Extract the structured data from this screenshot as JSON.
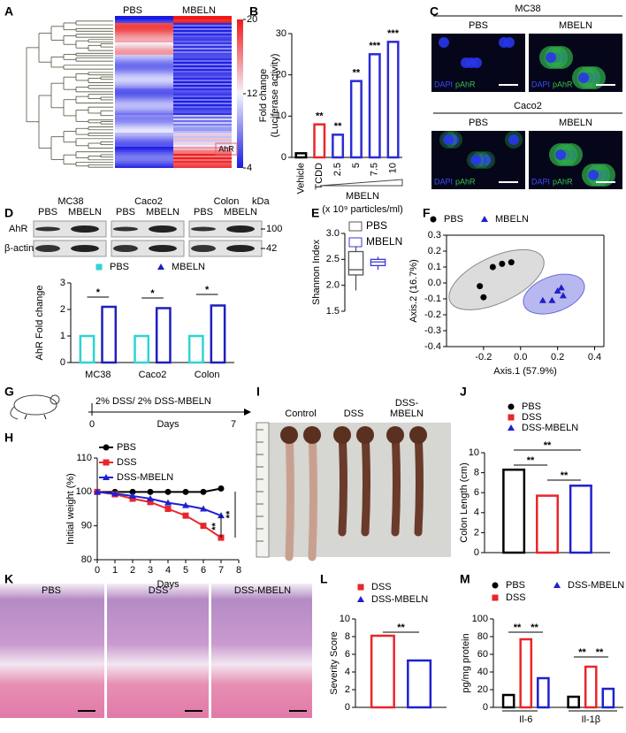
{
  "panel_labels": [
    "A",
    "B",
    "C",
    "D",
    "E",
    "F",
    "G",
    "H",
    "I",
    "J",
    "K",
    "L",
    "M"
  ],
  "heatmap": {
    "columns": [
      "PBS",
      "MBELN"
    ],
    "colorbar_lim": [
      4,
      20
    ],
    "colorbar_ticks": [
      20,
      12,
      4
    ],
    "highlight": "AhR"
  },
  "microscopy": {
    "rows": [
      {
        "cell_line": "MC38",
        "conditions": [
          "PBS",
          "MBELN"
        ]
      },
      {
        "cell_line": "Caco2",
        "conditions": [
          "PBS",
          "MBELN"
        ]
      }
    ],
    "channels": [
      "DAPI",
      "pAhR"
    ]
  },
  "western_blot": {
    "groups": [
      "MC38",
      "Caco2",
      "Colon"
    ],
    "lanes": [
      "PBS",
      "MBELN"
    ],
    "proteins": [
      "AhR",
      "β-actin"
    ],
    "unit": "kDa",
    "markers": [
      "100",
      "42"
    ]
  },
  "schematic": {
    "treatment": "2% DSS/ 2% DSS-MBELN",
    "start": "0",
    "axis_label": "Days",
    "end": "7"
  },
  "colon_photo": {
    "groups": [
      [
        "Control"
      ],
      [
        "DSS"
      ],
      [
        "DSS-",
        "MBELN"
      ]
    ]
  },
  "histology": {
    "groups": [
      "PBS",
      "DSS",
      "DSS-MBELN"
    ]
  },
  "chart_data": [
    {
      "type": "bar",
      "ylabel": [
        "Fold change",
        "(Luciferase activity)"
      ],
      "categories": [
        "Vehicle",
        "TCDD",
        "2.5",
        "5",
        "7.5",
        "10"
      ],
      "values": [
        1,
        8,
        5.5,
        18.5,
        25,
        28
      ],
      "colors": [
        "#000000",
        "#e8262a",
        "#2b2bd6",
        "#2b2bd6",
        "#2b2bd6",
        "#2b2bd6"
      ],
      "annotations": [
        null,
        "**",
        "**",
        "**",
        "***",
        "***"
      ],
      "xlabel": [
        "MBELN",
        "(x 10⁹ particles/ml)"
      ],
      "ylim": [
        0,
        30
      ],
      "yticks": [
        0,
        10,
        20,
        30
      ]
    },
    {
      "type": "bar",
      "ylabel": "AhR Fold change",
      "categories": [
        "MC38",
        "Caco2",
        "Colon"
      ],
      "series": [
        {
          "name": "PBS",
          "color": "#2fd3d3",
          "marker": "square",
          "values": [
            1,
            1,
            1
          ]
        },
        {
          "name": "MBELN",
          "color": "#1f1fbf",
          "marker": "triangle",
          "values": [
            2.1,
            2.05,
            2.15
          ]
        }
      ],
      "annotations": [
        "*",
        "*",
        "*"
      ],
      "ylim": [
        0,
        3
      ],
      "yticks": [
        0,
        1,
        2,
        3
      ]
    },
    {
      "type": "box",
      "ylabel": "Shannon Index",
      "series": [
        {
          "name": "PBS",
          "color": "#555555",
          "min": 1.9,
          "q1": 2.2,
          "median": 2.3,
          "q3": 2.65,
          "max": 2.85
        },
        {
          "name": "MBELN",
          "color": "#3a3ad8",
          "min": 2.3,
          "q1": 2.38,
          "median": 2.45,
          "q3": 2.5,
          "max": 2.55
        }
      ],
      "ylim": [
        1.5,
        3.0
      ],
      "yticks": [
        1.5,
        {
          "value": 2,
          "label": "2.0"
        },
        2.5,
        {
          "value": 3,
          "label": "3.0"
        }
      ]
    },
    {
      "type": "scatter",
      "xlabel": "Axis.1 (57.9%)",
      "ylabel": "Axis.2 (16.7%)",
      "series": [
        {
          "name": "PBS",
          "color": "#000000",
          "marker": "circle",
          "x": [
            -0.22,
            -0.2,
            -0.15,
            -0.1,
            -0.05
          ],
          "values": [
            -0.02,
            -0.09,
            0.1,
            0.12,
            0.13
          ]
        },
        {
          "name": "MBELN",
          "color": "#2020c8",
          "marker": "triangle",
          "x": [
            0.12,
            0.17,
            0.2,
            0.22,
            0.23
          ],
          "values": [
            -0.11,
            -0.11,
            -0.05,
            -0.03,
            -0.08
          ]
        }
      ],
      "xlim": [
        -0.4,
        0.45
      ],
      "xticks": [
        -0.2,
        {
          "value": 0,
          "label": "0.0"
        },
        0.2,
        0.4
      ],
      "ylim": [
        -0.4,
        0.3
      ],
      "yticks": [
        -0.4,
        -0.3,
        -0.2,
        -0.1,
        {
          "value": 0,
          "label": "0.0"
        },
        0.1,
        0.2,
        0.3
      ]
    },
    {
      "type": "line",
      "xlabel": "Days",
      "ylabel": "Initial weight (%)",
      "x": [
        0,
        1,
        2,
        3,
        4,
        5,
        6,
        7
      ],
      "series": [
        {
          "name": "PBS",
          "color": "#000000",
          "marker": "circle",
          "values": [
            100,
            100,
            100,
            100,
            100,
            100,
            100,
            101
          ]
        },
        {
          "name": "DSS",
          "color": "#e8262a",
          "marker": "square",
          "values": [
            100,
            99.3,
            98,
            97,
            95,
            93,
            90,
            86.5
          ]
        },
        {
          "name": "DSS-MBELN",
          "color": "#2020d0",
          "marker": "triangle",
          "values": [
            100,
            99.5,
            98.8,
            98,
            96.8,
            96,
            95,
            93
          ]
        }
      ],
      "annotations": [
        "**",
        "**"
      ],
      "xlim": [
        0,
        8
      ],
      "xticks": [
        0,
        1,
        2,
        3,
        4,
        5,
        6,
        7,
        8
      ],
      "ylim": [
        80,
        110
      ],
      "yticks": [
        80,
        90,
        100,
        110
      ]
    },
    {
      "type": "bar",
      "ylabel": "Colon Length (cm)",
      "categories": [
        null
      ],
      "series": [
        {
          "name": "PBS",
          "color": "#000000",
          "marker": "circle",
          "values": [
            8.3
          ]
        },
        {
          "name": "DSS",
          "color": "#e8262a",
          "marker": "square",
          "values": [
            5.7
          ]
        },
        {
          "name": "DSS-MBELN",
          "color": "#2020d0",
          "marker": "triangle",
          "values": [
            6.7
          ]
        }
      ],
      "annotations": [
        "**",
        "**",
        "**"
      ],
      "ylim": [
        0,
        10
      ],
      "yticks": [
        0,
        2,
        4,
        6,
        8,
        10
      ]
    },
    {
      "type": "bar",
      "ylabel": "Severity Score",
      "categories": [
        null
      ],
      "series": [
        {
          "name": "DSS",
          "color": "#e8262a",
          "marker": "square",
          "values": [
            8.1
          ]
        },
        {
          "name": "DSS-MBELN",
          "color": "#2020d0",
          "marker": "triangle",
          "values": [
            5.3
          ]
        }
      ],
      "annotations": [
        "**"
      ],
      "ylim": [
        0,
        10
      ],
      "yticks": [
        0,
        2,
        4,
        6,
        8,
        10
      ]
    },
    {
      "type": "bar",
      "ylabel": "pg/mg protein",
      "categories": [
        "Il-6",
        "Il-1β"
      ],
      "series": [
        {
          "name": "PBS",
          "color": "#000000",
          "marker": "circle",
          "values": [
            14,
            12
          ]
        },
        {
          "name": "DSS",
          "color": "#e8262a",
          "marker": "square",
          "values": [
            77,
            46
          ]
        },
        {
          "name": "DSS-MBELN",
          "color": "#2020d0",
          "marker": "triangle",
          "values": [
            33,
            21
          ]
        }
      ],
      "annotations": [
        "**",
        "**",
        "**",
        "**"
      ],
      "ylim": [
        0,
        100
      ],
      "yticks": [
        0,
        20,
        40,
        60,
        80,
        100
      ]
    }
  ]
}
